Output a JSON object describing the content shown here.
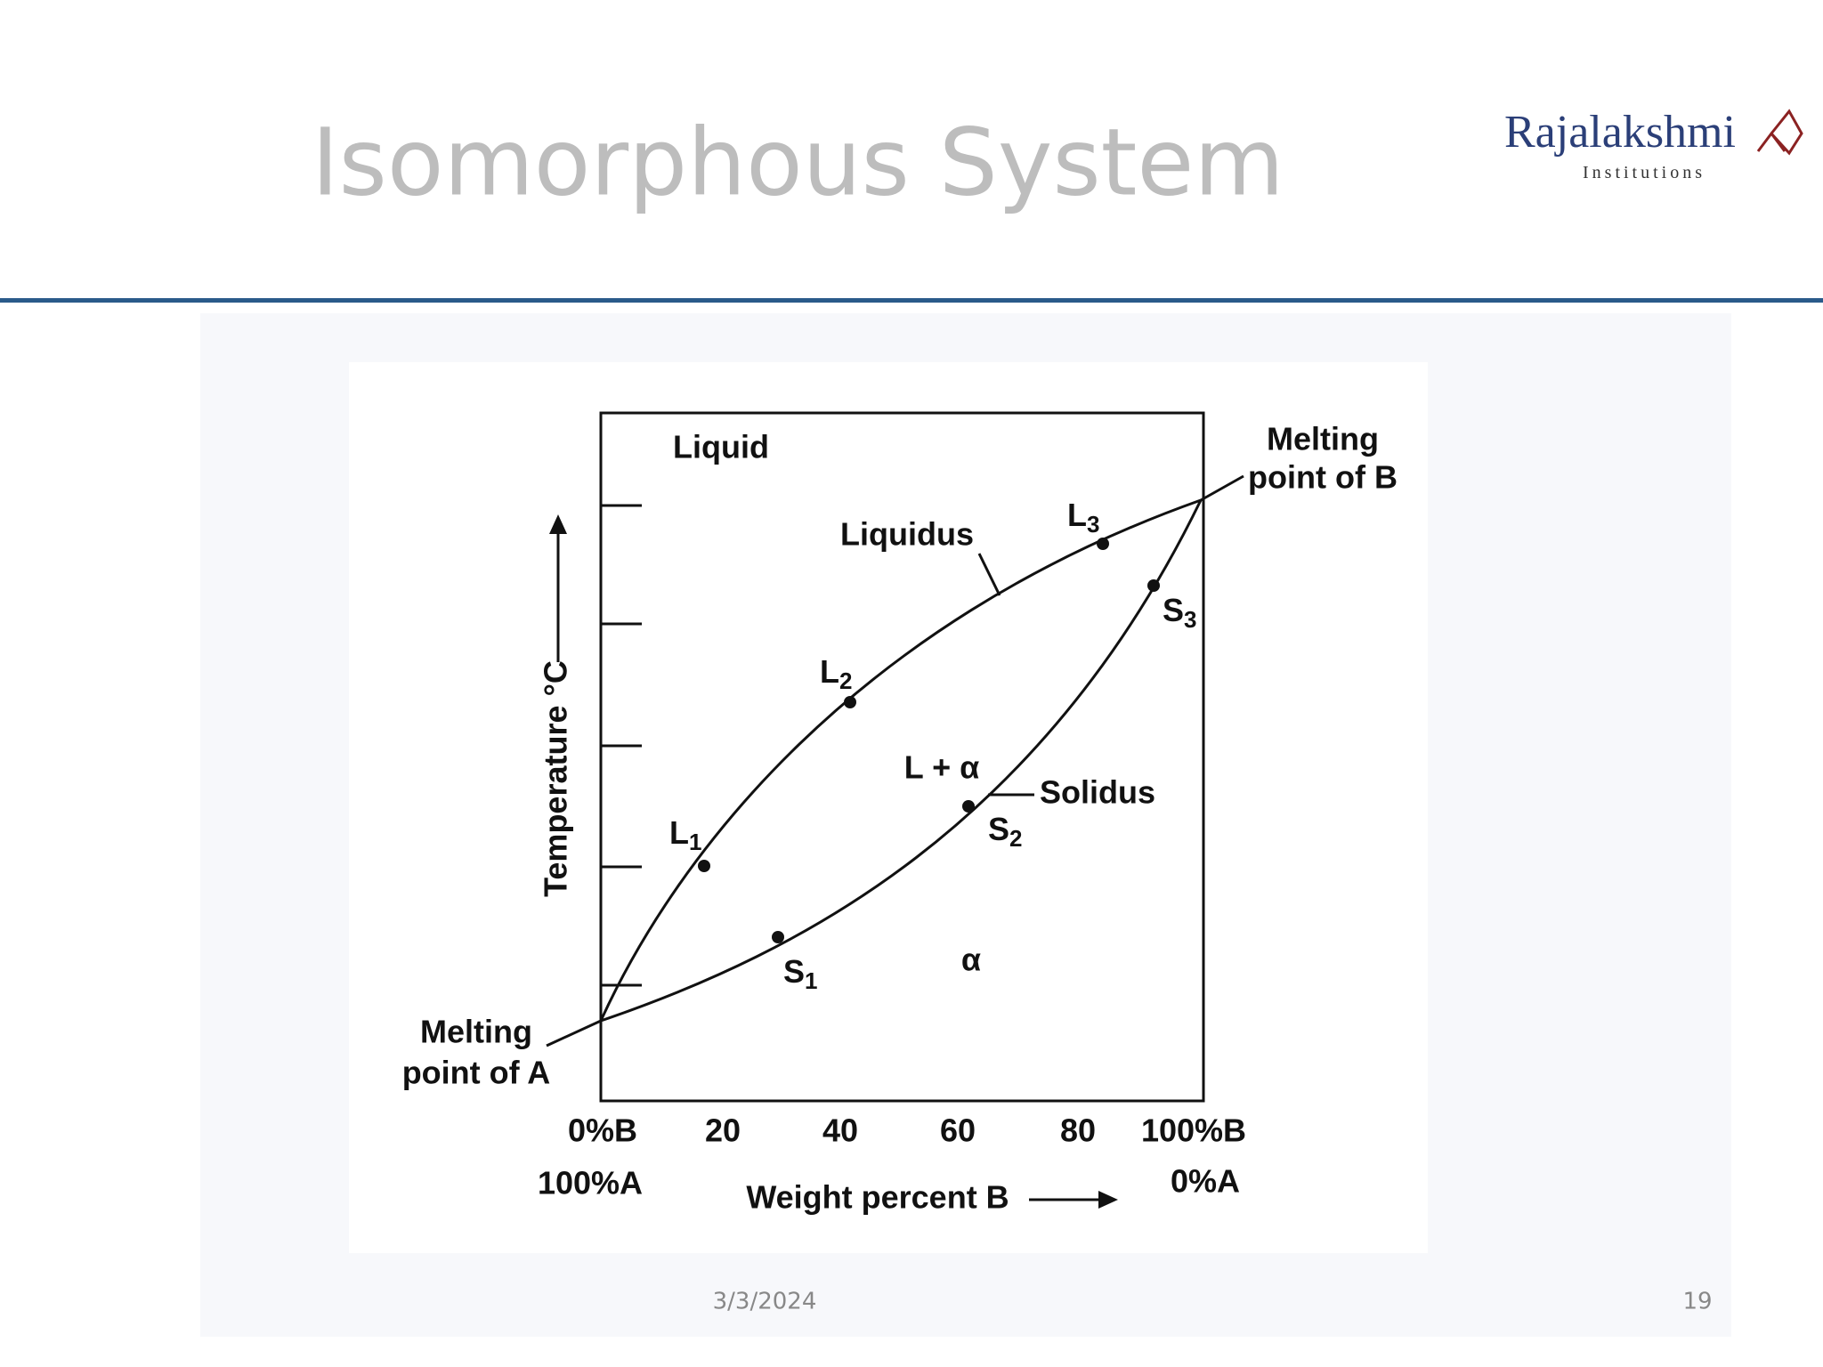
{
  "header": {
    "title": "Isomorphous System",
    "logo": {
      "name": "Rajalakshmi",
      "subtitle": "Institutions"
    }
  },
  "diagram": {
    "regions": {
      "liquid": "Liquid",
      "two_phase": "L + α",
      "solid": "α"
    },
    "curves": {
      "liquidus": "Liquidus",
      "solidus": "Solidus"
    },
    "points": [
      {
        "base": "L",
        "sub": "1"
      },
      {
        "base": "L",
        "sub": "2"
      },
      {
        "base": "L",
        "sub": "3"
      },
      {
        "base": "S",
        "sub": "1"
      },
      {
        "base": "S",
        "sub": "2"
      },
      {
        "base": "S",
        "sub": "3"
      }
    ],
    "melting_a": [
      "Melting",
      "point of A"
    ],
    "melting_b": [
      "Melting",
      "point of B"
    ],
    "y_axis_label": "Temperature °C",
    "x_axis_label": "Weight percent B",
    "x_ticks": [
      "0%B",
      "20",
      "40",
      "60",
      "80",
      "100%B"
    ],
    "x_secondary": [
      "100%A",
      "0%A"
    ]
  },
  "footer": {
    "date": "3/3/2024",
    "page": "19"
  }
}
